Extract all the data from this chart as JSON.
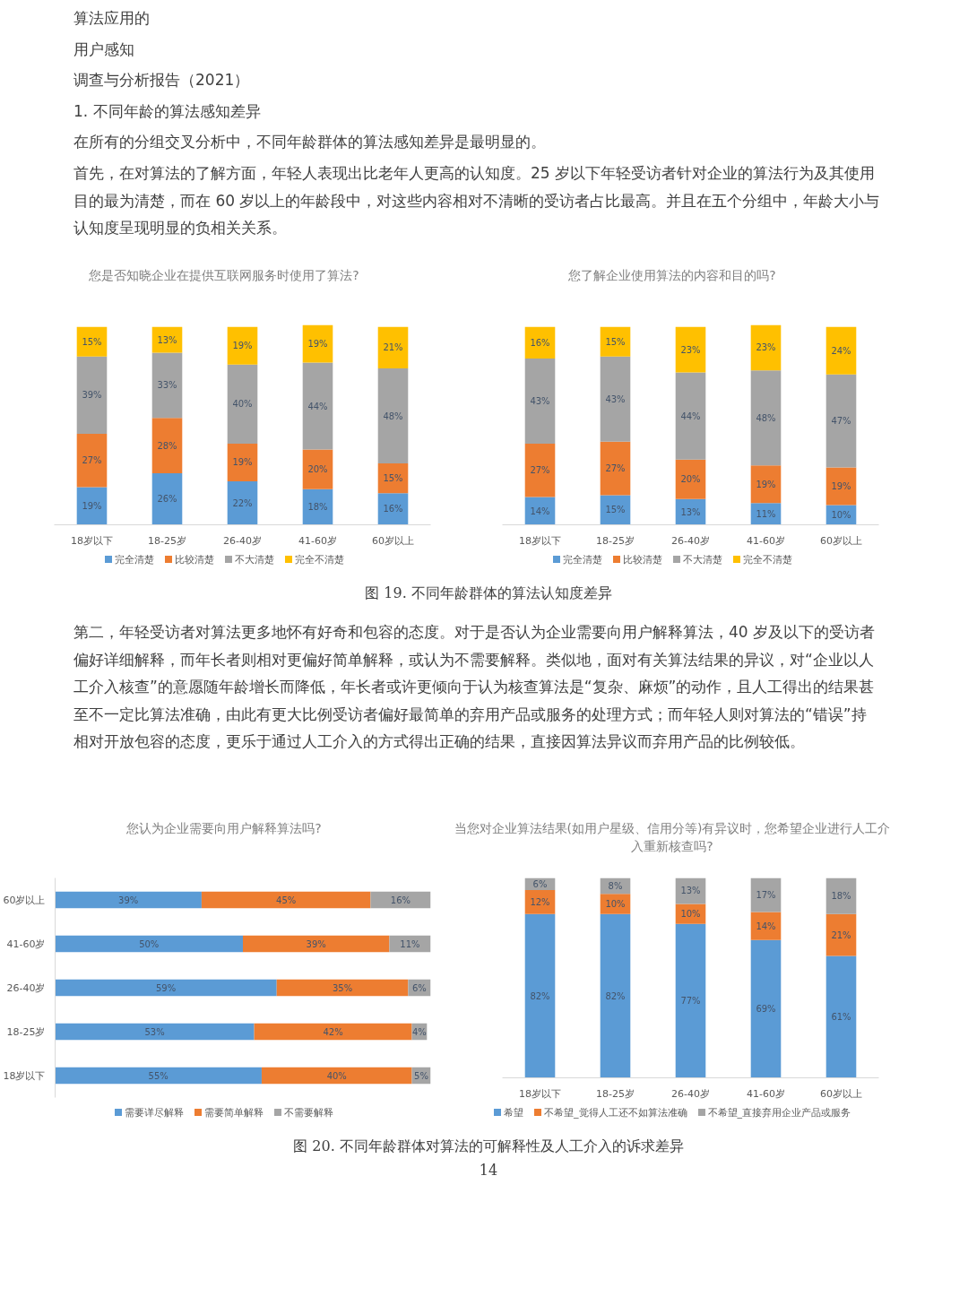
{
  "chart_data": [
    {
      "type": "bar",
      "stacked": true,
      "legend": "bottom",
      "title": "您是否知晓企业在提供互联网服务时使用了算法?",
      "categories": [
        "18岁以下",
        "18-25岁",
        "26-40岁",
        "41-60岁",
        "60岁以上"
      ],
      "annotations": [
        "算法应用的",
        "用户感知",
        "调查与分析报告（2021）",
        "1. 不同年龄的算法感知差异",
        "在所有的分组交叉分析中，不同年龄群体的算法感知差异是最明显的。",
        "首先，在对算法的了解方面，年轻人表现出比老年人更高的认知度。25 岁以下年轻受访者针对企业的算法行为及其使用目的最为清楚，而在 60 岁以上的年龄段中，对这些内容相对不清晰的受访者占比最高。并且在五个分组中，年龄大小与认知度呈现明显的负相关关系。"
      ],
      "series": [
        {
          "name": "完全清楚",
          "color": "#5b9bd5",
          "values": [
            19,
            26,
            22,
            18,
            16
          ],
          "value_labels": [
            "19%",
            "26%",
            "22%",
            "18%",
            "16%"
          ]
        },
        {
          "name": "比较清楚",
          "color": "#ed7d31",
          "values": [
            27,
            28,
            19,
            20,
            15
          ],
          "value_labels": [
            "27%",
            "28%",
            "19%",
            "20%",
            "15%"
          ]
        },
        {
          "name": "不大清楚",
          "color": "#a5a5a5",
          "values": [
            39,
            33,
            40,
            44,
            48
          ],
          "value_labels": [
            "39%",
            "33%",
            "40%",
            "44%",
            "48%"
          ]
        },
        {
          "name": "完全不清楚",
          "color": "#ffc000",
          "values": [
            15,
            13,
            19,
            19,
            21
          ],
          "value_labels": [
            "15%",
            "13%",
            "19%",
            "19%",
            "21%"
          ]
        }
      ]
    },
    {
      "type": "bar",
      "stacked": true,
      "legend": "bottom",
      "title": "您了解企业使用算法的内容和目的吗?",
      "categories": [
        "18岁以下",
        "18-25岁",
        "26-40岁",
        "41-60岁",
        "60岁以上"
      ],
      "annotations": [
        "图 19. 不同年龄群体的算法认知度差异"
      ],
      "series": [
        {
          "name": "完全清楚",
          "color": "#5b9bd5",
          "values": [
            14,
            15,
            13,
            11,
            10
          ],
          "value_labels": [
            "14%",
            "15%",
            "13%",
            "11%",
            "10%"
          ]
        },
        {
          "name": "比较清楚",
          "color": "#ed7d31",
          "values": [
            27,
            27,
            20,
            19,
            19
          ],
          "value_labels": [
            "27%",
            "27%",
            "20%",
            "19%",
            "19%"
          ]
        },
        {
          "name": "不大清楚",
          "color": "#a5a5a5",
          "values": [
            43,
            43,
            44,
            48,
            47
          ],
          "value_labels": [
            "43%",
            "43%",
            "44%",
            "48%",
            "47%"
          ]
        },
        {
          "name": "完全不清楚",
          "color": "#ffc000",
          "values": [
            16,
            15,
            23,
            23,
            24
          ],
          "value_labels": [
            "16%",
            "15%",
            "23%",
            "23%",
            "24%"
          ]
        }
      ]
    },
    {
      "type": "bar",
      "stacked": true,
      "orientation": "horizontal",
      "legend": "bottom",
      "title": "您认为企业需要向用户解释算法吗?",
      "categories": [
        "60岁以上",
        "41-60岁",
        "26-40岁",
        "18-25岁",
        "18岁以下"
      ],
      "annotations": [
        "第二，年轻受访者对算法更多地怀有好奇和包容的态度。对于是否认为企业需要向用户解释算法，40 岁及以下的受访者偏好详细解释，而年长者则相对更偏好简单解释，或认为不需要解释。类似地，面对有关算法结果的异议，对“企业以人工介入核查”的意愿随年龄增长而降低，年长者或许更倾向于认为核查算法是“复杂、麻烦”的动作，且人工得出的结果甚至不一定比算法准确，由此有更大比例受访者偏好最简单的弃用产品或服务的处理方式；而年轻人则对算法的“错误”持相对开放包容的态度，更乐于通过人工介入的方式得出正确的结果，直接因算法异议而弃用产品的比例较低。"
      ],
      "series": [
        {
          "name": "需要详尽解释",
          "color": "#5b9bd5",
          "values": [
            39,
            50,
            59,
            53,
            55
          ],
          "value_labels": [
            "39%",
            "50%",
            "59%",
            "53%",
            "55%"
          ]
        },
        {
          "name": "需要简单解释",
          "color": "#ed7d31",
          "values": [
            45,
            39,
            35,
            42,
            40
          ],
          "value_labels": [
            "45%",
            "39%",
            "35%",
            "42%",
            "40%"
          ]
        },
        {
          "name": "不需要解释",
          "color": "#a5a5a5",
          "values": [
            16,
            11,
            6,
            4,
            5
          ],
          "value_labels": [
            "16%",
            "11%",
            "6%",
            "4%",
            "5%"
          ]
        }
      ]
    },
    {
      "type": "bar",
      "stacked": true,
      "legend": "bottom",
      "title": "当您对企业算法结果(如用户星级、信用分等)有异议时，您希望企业进行人工介入重新核查吗?",
      "categories": [
        "18岁以下",
        "18-25岁",
        "26-40岁",
        "41-60岁",
        "60岁以上"
      ],
      "annotations": [
        "图 20. 不同年龄群体对算法的可解释性及人工介入的诉求差异",
        "14"
      ],
      "series": [
        {
          "name": "希望",
          "color": "#5b9bd5",
          "values": [
            82,
            82,
            77,
            69,
            61
          ],
          "value_labels": [
            "82%",
            "82%",
            "77%",
            "69%",
            "61%"
          ]
        },
        {
          "name": "不希望_觉得人工还不如算法准确",
          "color": "#ed7d31",
          "values": [
            12,
            10,
            10,
            14,
            21
          ],
          "value_labels": [
            "12%",
            "10%",
            "10%",
            "14%",
            "21%"
          ]
        },
        {
          "name": "不希望_直接弃用企业产品或服务",
          "color": "#a5a5a5",
          "values": [
            6,
            8,
            13,
            17,
            18
          ],
          "value_labels": [
            "6%",
            "8%",
            "13%",
            "17%",
            "18%"
          ]
        }
      ]
    }
  ]
}
